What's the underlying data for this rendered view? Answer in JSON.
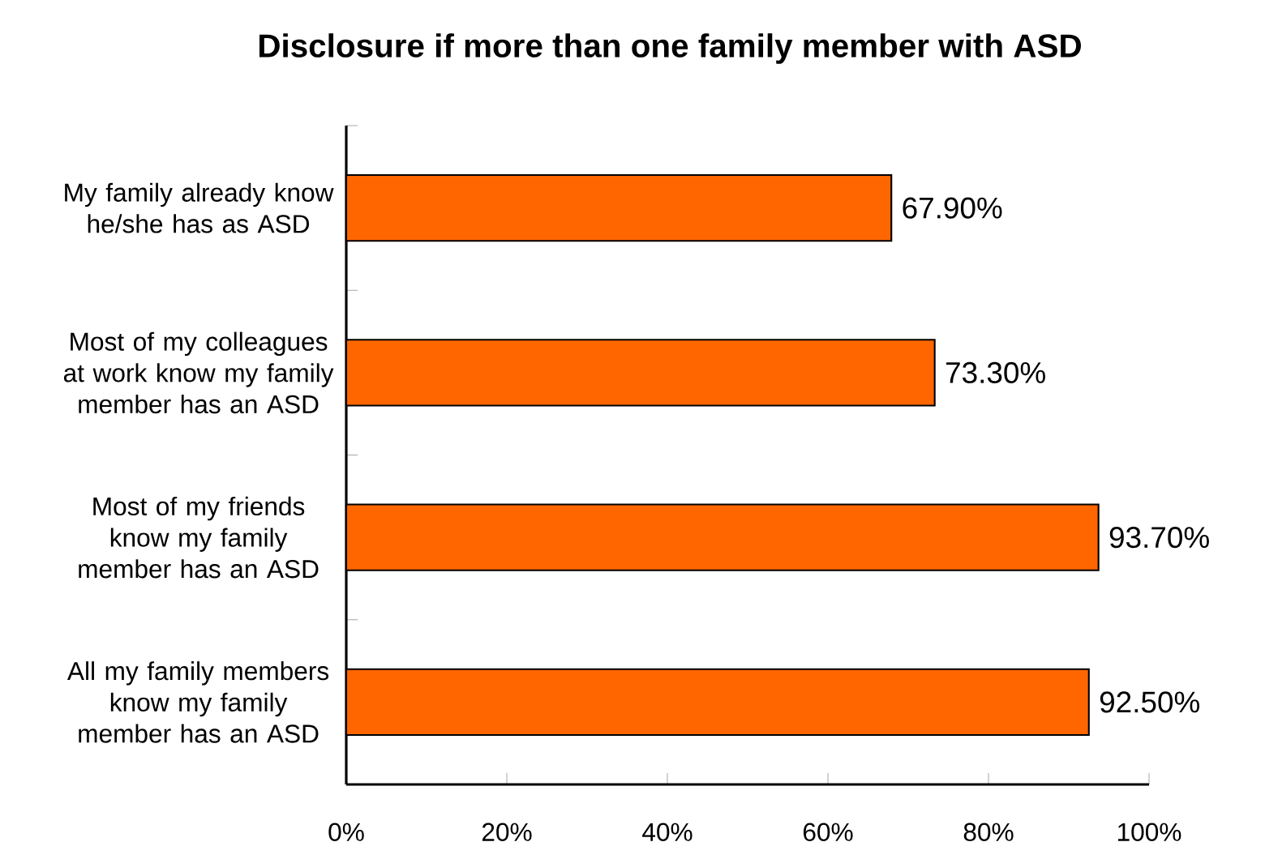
{
  "chart_data": {
    "type": "bar",
    "orientation": "horizontal",
    "title": "Disclosure if more than one family member with ASD",
    "categories": [
      "My family already know he/she has as ASD",
      "Most of my colleagues at work know my family member has an ASD",
      "Most of my friends know my family member has an ASD",
      "All my family members know my family member has an ASD"
    ],
    "values": [
      67.9,
      73.3,
      93.7,
      92.5
    ],
    "value_labels": [
      "67.90%",
      "73.30%",
      "93.70%",
      "92.50%"
    ],
    "color": "#ff6600",
    "xlim": [
      0,
      100
    ],
    "xticks": [
      {
        "value": 0,
        "label": "0%"
      },
      {
        "value": 20,
        "label": "20%"
      },
      {
        "value": 40,
        "label": "40%"
      },
      {
        "value": 60,
        "label": "60%"
      },
      {
        "value": 80,
        "label": "80%"
      },
      {
        "value": 100,
        "label": "100%"
      }
    ]
  }
}
